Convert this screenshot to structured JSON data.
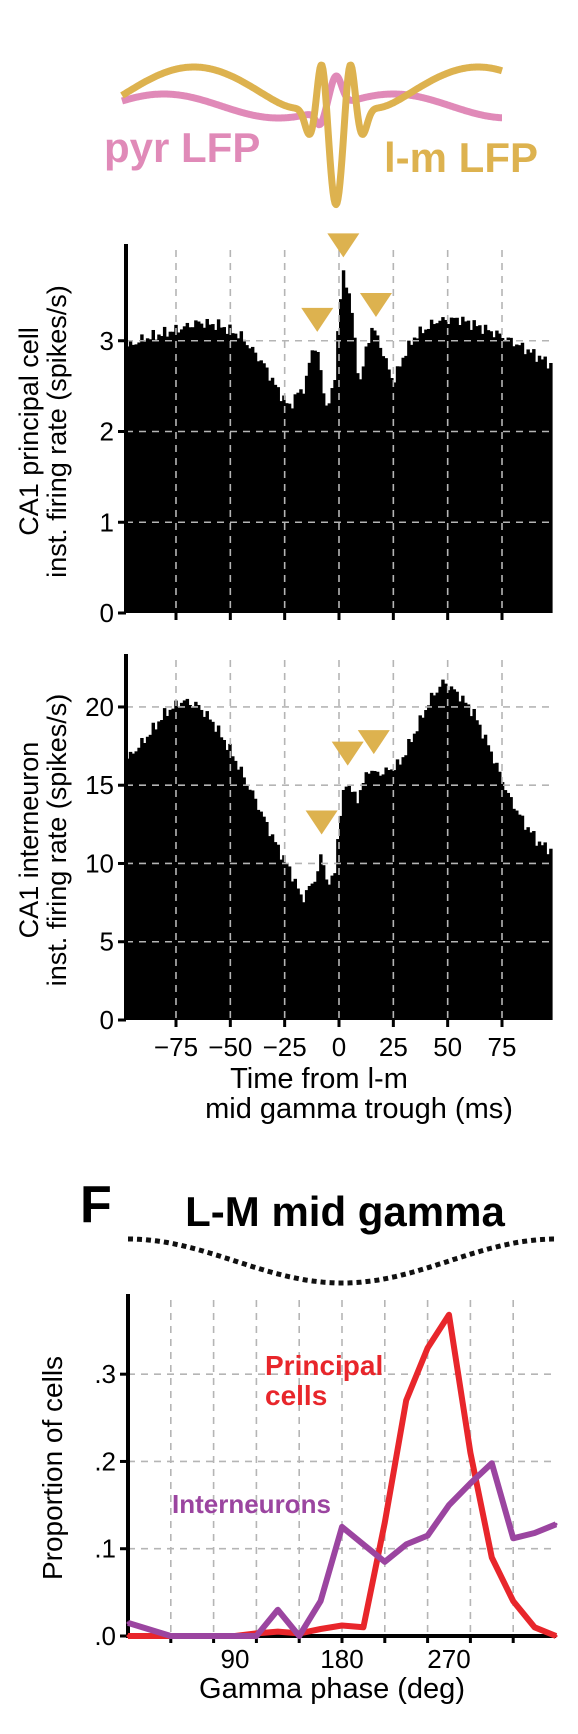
{
  "colors": {
    "pyr_lfp": "#e08ab8",
    "lm_lfp": "#ddb24f",
    "marker": "#ddb24f",
    "bars": "#000000",
    "principal": "#e8262b",
    "interneurons": "#9b45a0",
    "grid": "#b5b5b5",
    "phase_wave": "#111111"
  },
  "lfp_labels": {
    "pyr": "pyr LFP",
    "lm": "l-m LFP"
  },
  "panel_label": "F",
  "chart_data": [
    {
      "id": "principal-histogram",
      "type": "bar",
      "ylabel_lines": [
        "CA1 principal cell",
        "inst. firing rate (spikes/s)"
      ],
      "xlim": [
        -98,
        98
      ],
      "ylim": [
        0,
        4
      ],
      "yticks": [
        0,
        1,
        2,
        3
      ],
      "ytick_labels": [
        "0",
        "1",
        "2",
        "3"
      ],
      "xgrid": [
        -75,
        -50,
        -25,
        0,
        25,
        50,
        75
      ],
      "grid": true,
      "markers_x": [
        -10,
        2,
        17
      ],
      "keypoints": [
        [
          -98,
          2.93
        ],
        [
          -90,
          3.02
        ],
        [
          -75,
          3.12
        ],
        [
          -65,
          3.2
        ],
        [
          -55,
          3.17
        ],
        [
          -45,
          3.05
        ],
        [
          -35,
          2.75
        ],
        [
          -28,
          2.45
        ],
        [
          -23,
          2.27
        ],
        [
          -19,
          2.42
        ],
        [
          -16,
          2.48
        ],
        [
          -14,
          2.7
        ],
        [
          -12,
          2.95
        ],
        [
          -10,
          2.9
        ],
        [
          -8,
          2.55
        ],
        [
          -6,
          2.3
        ],
        [
          -4,
          2.32
        ],
        [
          -2,
          2.6
        ],
        [
          0,
          3.35
        ],
        [
          2,
          3.72
        ],
        [
          4,
          3.6
        ],
        [
          6,
          3.3
        ],
        [
          8,
          2.75
        ],
        [
          10,
          2.55
        ],
        [
          12,
          2.85
        ],
        [
          15,
          3.15
        ],
        [
          18,
          3.02
        ],
        [
          21,
          2.8
        ],
        [
          25,
          2.55
        ],
        [
          30,
          2.85
        ],
        [
          35,
          3.05
        ],
        [
          45,
          3.22
        ],
        [
          55,
          3.24
        ],
        [
          65,
          3.15
        ],
        [
          75,
          3.05
        ],
        [
          85,
          2.92
        ],
        [
          98,
          2.73
        ]
      ]
    },
    {
      "id": "interneuron-histogram",
      "type": "bar",
      "ylabel_lines": [
        "CA1 interneuron",
        "inst. firing rate (spikes/s)"
      ],
      "xlabel_lines": [
        "Time from l-m",
        "mid gamma trough (ms)"
      ],
      "xlim": [
        -98,
        98
      ],
      "ylim": [
        0,
        23
      ],
      "yticks": [
        0,
        5,
        10,
        15,
        20
      ],
      "ytick_labels": [
        "0",
        "5",
        "10",
        "15",
        "20"
      ],
      "xticks": [
        -75,
        -50,
        -25,
        0,
        25,
        50,
        75
      ],
      "xtick_labels": [
        "−75",
        "−50",
        "−25",
        "0",
        "25",
        "50",
        "75"
      ],
      "xgrid": [
        -75,
        -50,
        -25,
        0,
        25,
        50,
        75
      ],
      "grid": true,
      "markers_x": [
        -8,
        4,
        16
      ],
      "keypoints": [
        [
          -98,
          16.6
        ],
        [
          -90,
          17.8
        ],
        [
          -80,
          19.6
        ],
        [
          -72,
          20.4
        ],
        [
          -65,
          20.1
        ],
        [
          -58,
          19.0
        ],
        [
          -50,
          17.2
        ],
        [
          -40,
          14.5
        ],
        [
          -30,
          11.5
        ],
        [
          -22,
          9.4
        ],
        [
          -17,
          7.7
        ],
        [
          -13,
          8.6
        ],
        [
          -10,
          9.3
        ],
        [
          -8,
          10.7
        ],
        [
          -6,
          9.1
        ],
        [
          -4,
          8.5
        ],
        [
          -2,
          9.6
        ],
        [
          0,
          12.5
        ],
        [
          3,
          15.3
        ],
        [
          5,
          14.9
        ],
        [
          8,
          14.0
        ],
        [
          11,
          15.1
        ],
        [
          14,
          16.1
        ],
        [
          17,
          15.7
        ],
        [
          22,
          15.9
        ],
        [
          28,
          16.4
        ],
        [
          35,
          18.4
        ],
        [
          42,
          20.5
        ],
        [
          48,
          21.6
        ],
        [
          55,
          20.8
        ],
        [
          62,
          19.6
        ],
        [
          70,
          17.1
        ],
        [
          78,
          14.3
        ],
        [
          85,
          12.6
        ],
        [
          92,
          11.3
        ],
        [
          98,
          10.8
        ]
      ]
    },
    {
      "id": "gamma-phase-plot",
      "type": "line",
      "title": "L-M mid gamma",
      "xlabel": "Gamma phase (deg)",
      "ylabel": "Proportion of cells",
      "xlim": [
        0,
        360
      ],
      "ylim": [
        0,
        0.385
      ],
      "xticks": [
        90,
        180,
        270
      ],
      "xtick_labels": [
        "90",
        "180",
        "270"
      ],
      "xgrid": [
        36,
        72,
        108,
        144,
        180,
        216,
        252,
        288,
        324
      ],
      "yticks": [
        0,
        0.1,
        0.2,
        0.3
      ],
      "ytick_labels": [
        ".0",
        ".1",
        ".2",
        ".3"
      ],
      "grid": true,
      "series": [
        {
          "name": "Principal cells",
          "label_lines": [
            "Principal",
            "cells"
          ],
          "color": "#e8262b",
          "x": [
            0,
            18,
            36,
            54,
            72,
            90,
            108,
            126,
            144,
            162,
            180,
            198,
            216,
            234,
            252,
            270,
            288,
            306,
            324,
            342,
            360
          ],
          "y": [
            0.0,
            0.0,
            0.0,
            0.0,
            0.0,
            0.0,
            0.003,
            0.005,
            0.003,
            0.008,
            0.012,
            0.01,
            0.13,
            0.27,
            0.33,
            0.368,
            0.21,
            0.09,
            0.04,
            0.01,
            0.0
          ]
        },
        {
          "name": "Interneurons",
          "label_lines": [
            "Interneurons"
          ],
          "color": "#9b45a0",
          "x": [
            0,
            36,
            72,
            108,
            126,
            144,
            162,
            180,
            198,
            216,
            234,
            252,
            270,
            288,
            306,
            324,
            342,
            360
          ],
          "y": [
            0.015,
            0.0,
            0.0,
            0.0,
            0.03,
            0.0,
            0.04,
            0.125,
            0.105,
            0.085,
            0.105,
            0.115,
            0.15,
            0.175,
            0.198,
            0.112,
            0.118,
            0.128
          ]
        }
      ]
    }
  ]
}
